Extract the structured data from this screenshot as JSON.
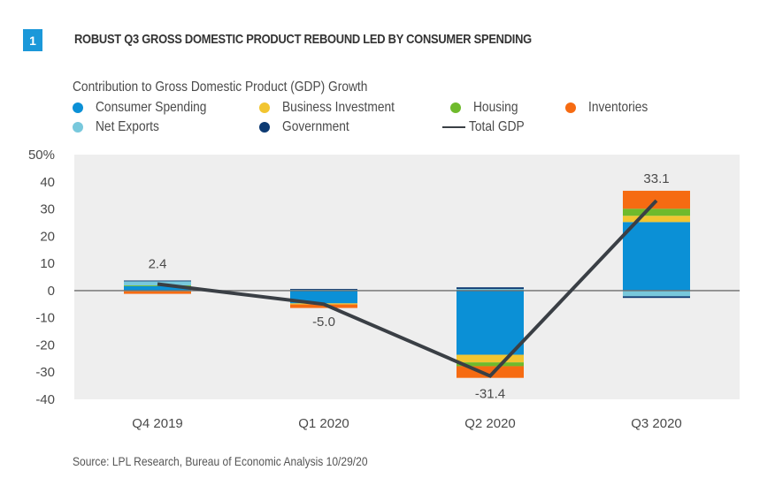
{
  "figure": {
    "number": "1",
    "title": "ROBUST Q3 GROSS DOMESTIC PRODUCT REBOUND LED BY CONSUMER SPENDING",
    "source": "Source: LPL Research, Bureau of Economic Analysis   10/29/20"
  },
  "colors": {
    "badge": "#1b98d9",
    "plot_background": "#eeeeee",
    "zero_line": "#6d6d6d",
    "total_line": "#3a3f45"
  },
  "chart_data": {
    "type": "bar",
    "stacked": true,
    "title": "Contribution to Gross Domestic Product (GDP) Growth",
    "xlabel": "",
    "ylabel": "",
    "ylim": [
      -40,
      50
    ],
    "yticks": [
      50,
      40,
      30,
      20,
      10,
      0,
      -10,
      -20,
      -30,
      -40
    ],
    "ytick_labels": [
      "50%",
      "40",
      "30",
      "20",
      "10",
      "0",
      "-10",
      "-20",
      "-30",
      "-40"
    ],
    "grid": false,
    "legend_placement": "top-left",
    "categories": [
      "Q4 2019",
      "Q1 2020",
      "Q2 2020",
      "Q3 2020"
    ],
    "series": [
      {
        "name": "Consumer Spending",
        "color": "#0b90d6",
        "values": [
          1.6,
          -4.7,
          -23.6,
          25.2
        ]
      },
      {
        "name": "Business Investment",
        "color": "#f2c530",
        "values": [
          -0.3,
          -0.4,
          -2.8,
          2.3
        ]
      },
      {
        "name": "Housing",
        "color": "#6fba2c",
        "values": [
          0.3,
          0.2,
          -1.4,
          2.6
        ]
      },
      {
        "name": "Inventories",
        "color": "#f66b12",
        "values": [
          -0.9,
          -1.3,
          -4.3,
          6.6
        ]
      },
      {
        "name": "Net Exports",
        "color": "#78c8dc",
        "values": [
          1.5,
          0.1,
          0.6,
          -2.1
        ]
      },
      {
        "name": "Government",
        "color": "#0d3a72",
        "values": [
          0.3,
          0.3,
          0.6,
          -0.6
        ]
      }
    ],
    "line": {
      "name": "Total GDP",
      "values": [
        2.4,
        -5.0,
        -31.4,
        33.1
      ],
      "labels": [
        "2.4",
        "-5.0",
        "-31.4",
        "33.1"
      ]
    },
    "legend": [
      {
        "name": "Consumer Spending",
        "marker": "dot",
        "color": "#0b90d6"
      },
      {
        "name": "Business Investment",
        "marker": "dot",
        "color": "#f2c530"
      },
      {
        "name": "Housing",
        "marker": "dot",
        "color": "#6fba2c"
      },
      {
        "name": "Inventories",
        "marker": "dot",
        "color": "#f66b12"
      },
      {
        "name": "Net Exports",
        "marker": "dot",
        "color": "#78c8dc"
      },
      {
        "name": "Government",
        "marker": "dot",
        "color": "#0d3a72"
      },
      {
        "name": "Total GDP",
        "marker": "line",
        "color": "#3a3f45"
      }
    ]
  }
}
